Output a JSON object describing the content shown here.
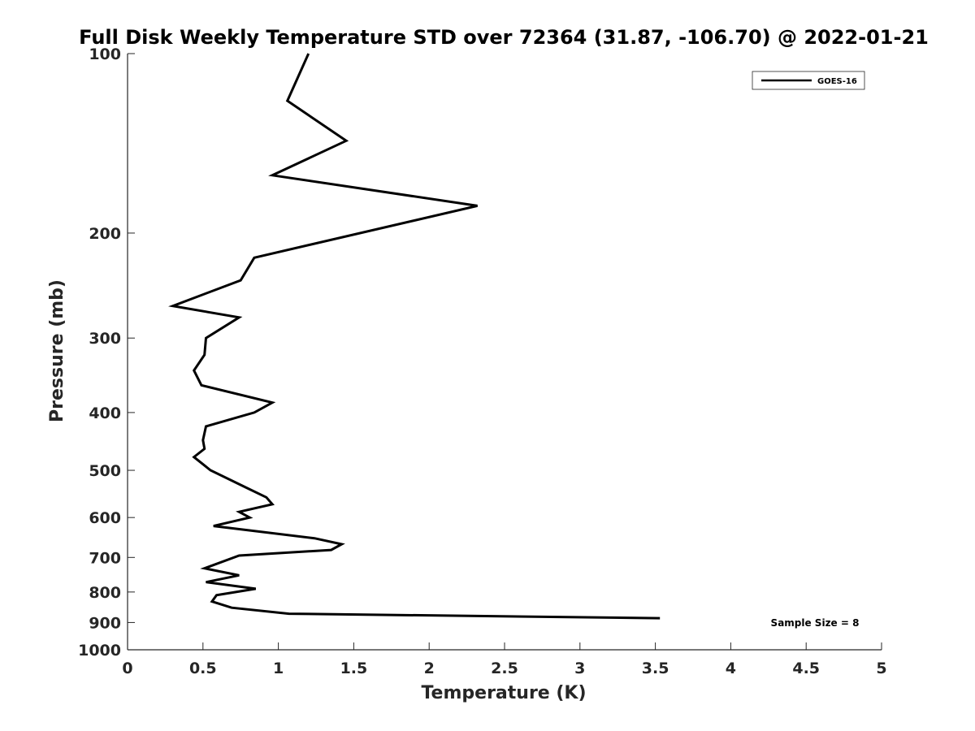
{
  "chart_data": {
    "type": "line",
    "title": "Full Disk Weekly Temperature STD over 72364 (31.87, -106.70) @ 2022-01-21",
    "xlabel": "Temperature (K)",
    "ylabel": "Pressure (mb)",
    "xlim": [
      0,
      5
    ],
    "ylim": [
      100,
      1000
    ],
    "y_scale": "log",
    "y_reversed": true,
    "grid": false,
    "legend_position": "top-right",
    "x_ticks": [
      "0",
      "0.5",
      "1",
      "1.5",
      "2",
      "2.5",
      "3",
      "3.5",
      "4",
      "4.5",
      "5"
    ],
    "x_tick_values": [
      0,
      0.5,
      1,
      1.5,
      2,
      2.5,
      3,
      3.5,
      4,
      4.5,
      5
    ],
    "y_ticks": [
      "100",
      "200",
      "300",
      "400",
      "500",
      "600",
      "700",
      "800",
      "900",
      "1000"
    ],
    "y_tick_values": [
      100,
      200,
      300,
      400,
      500,
      600,
      700,
      800,
      900,
      1000
    ],
    "series": [
      {
        "name": "GOES-16",
        "color": "#000000",
        "points": [
          [
            1.2,
            100
          ],
          [
            1.06,
            120
          ],
          [
            1.45,
            140
          ],
          [
            0.96,
            160
          ],
          [
            2.32,
            180
          ],
          [
            0.84,
            220
          ],
          [
            0.75,
            240
          ],
          [
            0.3,
            265
          ],
          [
            0.74,
            277
          ],
          [
            0.52,
            300
          ],
          [
            0.51,
            320
          ],
          [
            0.44,
            340
          ],
          [
            0.49,
            360
          ],
          [
            0.96,
            385
          ],
          [
            0.84,
            400
          ],
          [
            0.52,
            422
          ],
          [
            0.5,
            445
          ],
          [
            0.51,
            460
          ],
          [
            0.44,
            475
          ],
          [
            0.55,
            500
          ],
          [
            0.79,
            535
          ],
          [
            0.92,
            555
          ],
          [
            0.96,
            570
          ],
          [
            0.74,
            587
          ],
          [
            0.81,
            600
          ],
          [
            0.57,
            620
          ],
          [
            1.24,
            650
          ],
          [
            1.42,
            665
          ],
          [
            1.35,
            680
          ],
          [
            0.74,
            695
          ],
          [
            0.51,
            730
          ],
          [
            0.74,
            750
          ],
          [
            0.52,
            770
          ],
          [
            0.85,
            790
          ],
          [
            0.59,
            810
          ],
          [
            0.56,
            830
          ],
          [
            0.69,
            850
          ],
          [
            1.07,
            870
          ],
          [
            3.53,
            885
          ]
        ]
      }
    ],
    "annotations": [
      {
        "text": "Sample Size = 8",
        "position": "bottom-right"
      }
    ]
  }
}
